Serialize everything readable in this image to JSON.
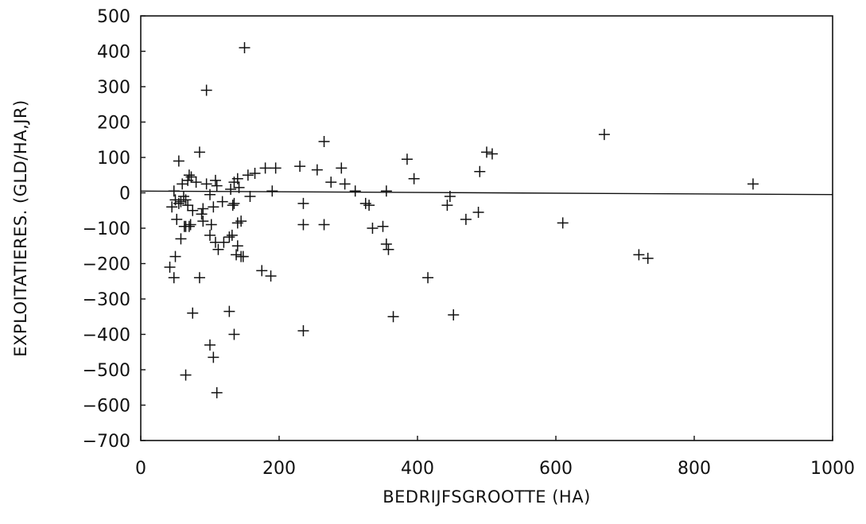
{
  "chart_data": {
    "type": "scatter",
    "title": "",
    "xlabel": "BEDRIJFSGROOTTE  (HA)",
    "ylabel": "EXPLOITATIERES.  (GLD/HA,JR)",
    "xlim": [
      0,
      1000
    ],
    "ylim": [
      -700,
      500
    ],
    "xticks": [
      0,
      200,
      400,
      600,
      800,
      1000
    ],
    "yticks": [
      500,
      400,
      300,
      200,
      100,
      0,
      -100,
      -200,
      -300,
      -400,
      -500,
      -600,
      -700
    ],
    "grid": false,
    "legend": "none",
    "marker": "+",
    "regression_line": {
      "x": [
        0,
        1000
      ],
      "y": [
        5,
        -5
      ]
    },
    "series": [
      {
        "x": [
          150,
          95,
          85,
          265,
          670,
          500,
          508,
          55,
          70,
          73,
          68,
          80,
          60,
          48,
          65,
          95,
          110,
          135,
          140,
          155,
          165,
          180,
          195,
          230,
          255,
          290,
          310,
          385,
          395,
          275,
          295,
          190,
          142,
          130,
          100,
          45,
          50,
          55,
          62,
          68,
          75,
          88,
          105,
          118,
          133,
          145,
          158,
          235,
          325,
          330,
          355,
          443,
          447,
          470,
          488,
          490,
          610,
          720,
          733,
          885,
          58,
          63,
          70,
          90,
          100,
          120,
          132,
          138,
          145,
          85,
          50,
          48,
          42,
          52,
          58,
          65,
          72,
          90,
          102,
          108,
          112,
          128,
          135,
          140,
          148,
          175,
          188,
          235,
          265,
          335,
          350,
          355,
          358,
          415,
          452,
          365,
          235,
          110,
          65,
          100,
          105,
          128,
          135,
          108,
          75,
          140
        ],
        "y": [
          410,
          290,
          115,
          145,
          165,
          115,
          110,
          90,
          50,
          45,
          35,
          30,
          25,
          5,
          -20,
          25,
          20,
          30,
          40,
          50,
          55,
          70,
          70,
          75,
          65,
          70,
          5,
          95,
          40,
          30,
          25,
          5,
          15,
          10,
          -5,
          -40,
          -20,
          -30,
          -10,
          -35,
          -50,
          -60,
          -40,
          -25,
          -35,
          -80,
          -10,
          -30,
          -30,
          -35,
          5,
          -35,
          -10,
          -75,
          -55,
          60,
          -85,
          -175,
          -185,
          25,
          -130,
          -95,
          -95,
          -80,
          -120,
          -140,
          -120,
          -175,
          -180,
          -240,
          -180,
          -240,
          -210,
          -75,
          -25,
          -95,
          -90,
          -45,
          -90,
          -140,
          -160,
          -125,
          -30,
          -150,
          -180,
          -220,
          -235,
          -90,
          -90,
          -100,
          -95,
          -145,
          -160,
          -240,
          -345,
          -350,
          -390,
          -565,
          -515,
          -430,
          -465,
          -335,
          -400,
          35,
          -340,
          -85
        ]
      }
    ]
  }
}
